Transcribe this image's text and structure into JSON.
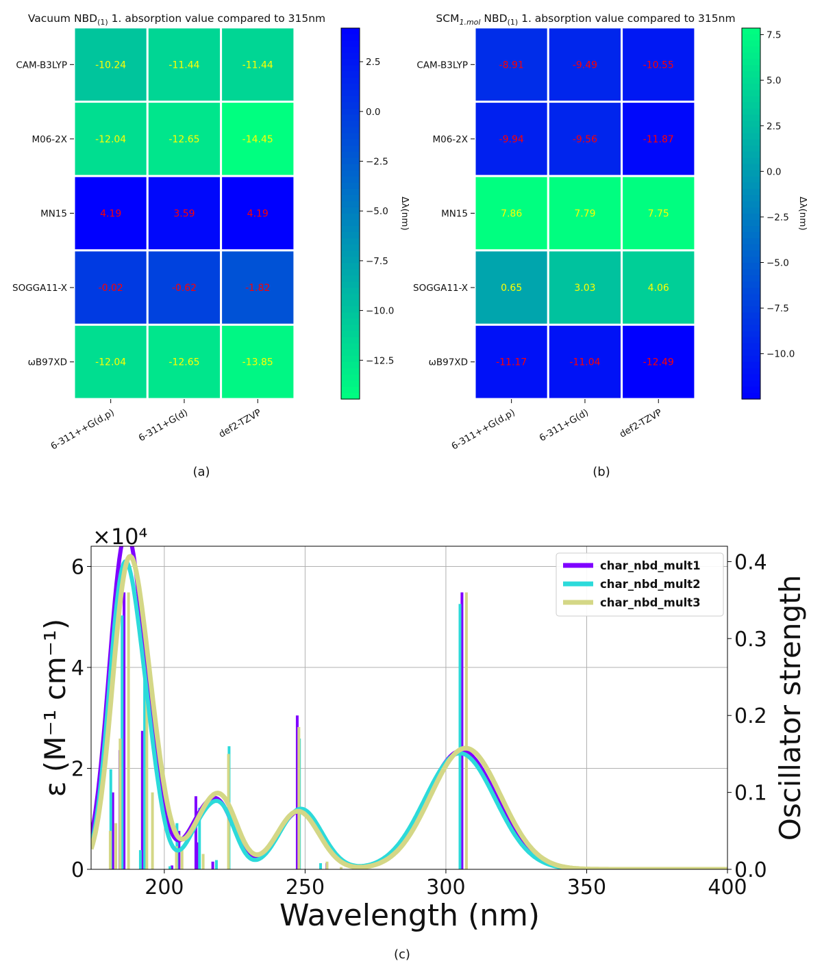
{
  "panels": {
    "a": {
      "label": "(a)"
    },
    "b": {
      "label": "(b)"
    },
    "c": {
      "label": "(c)"
    }
  },
  "chart_data": [
    {
      "type": "heatmap",
      "title": "Vacuum NBD(1) 1. absorption value compared to 315nm",
      "title_main": "Vacuum NBD",
      "title_sub": "(1)",
      "title_rest": " 1. absorption value compared to 315nm",
      "rows": [
        "CAM-B3LYP",
        "M06-2X",
        "MN15",
        "SOGGA11-X",
        "ωB97XD"
      ],
      "cols": [
        "6-311++G(d,p)",
        "6-311+G(d)",
        "def2-TZVP"
      ],
      "values": [
        [
          -10.24,
          -11.44,
          -11.44
        ],
        [
          -12.04,
          -12.65,
          -14.45
        ],
        [
          4.19,
          3.59,
          4.19
        ],
        [
          -0.02,
          -0.62,
          -1.82
        ],
        [
          -12.04,
          -12.65,
          -13.85
        ]
      ],
      "value_labels": [
        [
          "-10.24",
          "-11.44",
          "-11.44"
        ],
        [
          "-12.04",
          "-12.65",
          "-14.45"
        ],
        [
          "4.19",
          "3.59",
          "4.19"
        ],
        [
          "-0.02",
          "-0.62",
          "-1.82"
        ],
        [
          "-12.04",
          "-12.65",
          "-13.85"
        ]
      ],
      "colormap": "winter",
      "colormap_reversed": true,
      "vmin": -14.45,
      "vmax": 4.19,
      "colorbar_ticks": [
        2.5,
        0.0,
        -2.5,
        -5.0,
        -7.5,
        -10.0,
        -12.5
      ],
      "colorbar_tick_labels": [
        "2.5",
        "0.0",
        "−2.5",
        "−5.0",
        "−7.5",
        "−10.0",
        "−12.5"
      ],
      "colorbar_label": "Δλ(nm)",
      "text_colors": {
        "low": "#ffff00",
        "high": "#ff0000"
      }
    },
    {
      "type": "heatmap",
      "title": "SCM1.mol NBD(1) 1. absorption value compared to 315nm",
      "title_main": "SCM",
      "title_sub": "1.mol",
      "title_main2": " NBD",
      "title_sub2": "(1)",
      "title_rest": " 1. absorption value compared to 315nm",
      "rows": [
        "CAM-B3LYP",
        "M06-2X",
        "MN15",
        "SOGGA11-X",
        "ωB97XD"
      ],
      "cols": [
        "6-311++G(d,p)",
        "6-311+G(d)",
        "def2-TZVP"
      ],
      "values": [
        [
          -8.91,
          -9.49,
          -10.55
        ],
        [
          -9.94,
          -9.56,
          -11.87
        ],
        [
          7.86,
          7.79,
          7.75
        ],
        [
          0.65,
          3.03,
          4.06
        ],
        [
          -11.17,
          -11.04,
          -12.49
        ]
      ],
      "value_labels": [
        [
          "-8.91",
          "-9.49",
          "-10.55"
        ],
        [
          "-9.94",
          "-9.56",
          "-11.87"
        ],
        [
          "7.86",
          "7.79",
          "7.75"
        ],
        [
          "0.65",
          "3.03",
          "4.06"
        ],
        [
          "-11.17",
          "-11.04",
          "-12.49"
        ]
      ],
      "colormap": "winter",
      "colormap_reversed": false,
      "vmin": -12.49,
      "vmax": 7.86,
      "colorbar_ticks": [
        7.5,
        5.0,
        2.5,
        0.0,
        -2.5,
        -5.0,
        -7.5,
        -10.0
      ],
      "colorbar_tick_labels": [
        "7.5",
        "5.0",
        "2.5",
        "0.0",
        "−2.5",
        "−5.0",
        "−7.5",
        "−10.0"
      ],
      "colorbar_label": "Δλ(nm)",
      "text_colors": {
        "low": "#ff0000",
        "high": "#ffff00"
      }
    },
    {
      "type": "line",
      "xlabel": "Wavelength (nm)",
      "ylabel": "ε (M⁻¹ cm⁻¹)",
      "ylabel_right": "Oscillator strength",
      "y_scale_label": "×10⁴",
      "xlim": [
        174,
        400
      ],
      "ylim": [
        0,
        6.4
      ],
      "ylim_right": [
        0,
        0.42
      ],
      "x_ticks": [
        200,
        250,
        300,
        350,
        400
      ],
      "y_ticks": [
        0,
        2,
        4,
        6
      ],
      "y_ticks_right": [
        0.0,
        0.1,
        0.2,
        0.3,
        0.4
      ],
      "y_ticks_right_labels": [
        "0.0",
        "0.1",
        "0.2",
        "0.3",
        "0.4"
      ],
      "grid": true,
      "legend_position": "top-right",
      "series": [
        {
          "name": "char_nbd_mult1",
          "color": "#7f00ff",
          "peaks": [
            [
              185.5,
              5.9
            ],
            [
              193.5,
              2.0
            ],
            [
              212,
              0.7
            ],
            [
              220,
              1.1
            ],
            [
              248,
              1.15
            ],
            [
              305.5,
              2.35
            ]
          ],
          "width": 5.5,
          "sticks": [
            [
              182,
              0.1
            ],
            [
              184.5,
              0.155
            ],
            [
              186,
              0.36
            ],
            [
              192.5,
              0.18
            ],
            [
              203,
              0.005
            ],
            [
              205.5,
              0.05
            ],
            [
              211.5,
              0.095
            ],
            [
              212,
              0.035
            ],
            [
              217.5,
              0.01
            ],
            [
              247.5,
              0.2
            ],
            [
              258,
              0.008
            ],
            [
              306,
              0.36
            ]
          ]
        },
        {
          "name": "char_nbd_mult2",
          "color": "#2cdada",
          "peaks": [
            [
              185,
              5.3
            ],
            [
              193,
              2.4
            ],
            [
              212.5,
              0.7
            ],
            [
              220.5,
              1.1
            ],
            [
              248.5,
              1.2
            ],
            [
              305,
              2.3
            ]
          ],
          "width": 5,
          "sticks": [
            [
              181,
              0.13
            ],
            [
              185,
              0.33
            ],
            [
              191.5,
              0.025
            ],
            [
              193,
              0.3
            ],
            [
              202,
              0.004
            ],
            [
              204.5,
              0.06
            ],
            [
              212.5,
              0.08
            ],
            [
              218.5,
              0.012
            ],
            [
              223,
              0.16
            ],
            [
              248,
              0.17
            ],
            [
              255.5,
              0.008
            ],
            [
              305,
              0.345
            ]
          ]
        },
        {
          "name": "char_nbd_mult3",
          "color": "#d4d786",
          "peaks": [
            [
              186.5,
              5.3
            ],
            [
              194.5,
              2.2
            ],
            [
              213,
              0.7
            ],
            [
              221,
              1.2
            ],
            [
              247.5,
              1.15
            ],
            [
              307,
              2.4
            ]
          ],
          "width": 5.5,
          "sticks": [
            [
              180.5,
              0.05
            ],
            [
              182.5,
              0.06
            ],
            [
              184,
              0.17
            ],
            [
              187,
              0.36
            ],
            [
              193.5,
              0.25
            ],
            [
              195.5,
              0.1
            ],
            [
              204,
              0.03
            ],
            [
              206,
              0.025
            ],
            [
              213.5,
              0.02
            ],
            [
              222.5,
              0.15
            ],
            [
              247.5,
              0.185
            ],
            [
              257.5,
              0.01
            ],
            [
              262.5,
              0.003
            ],
            [
              307,
              0.36
            ]
          ]
        }
      ]
    }
  ]
}
